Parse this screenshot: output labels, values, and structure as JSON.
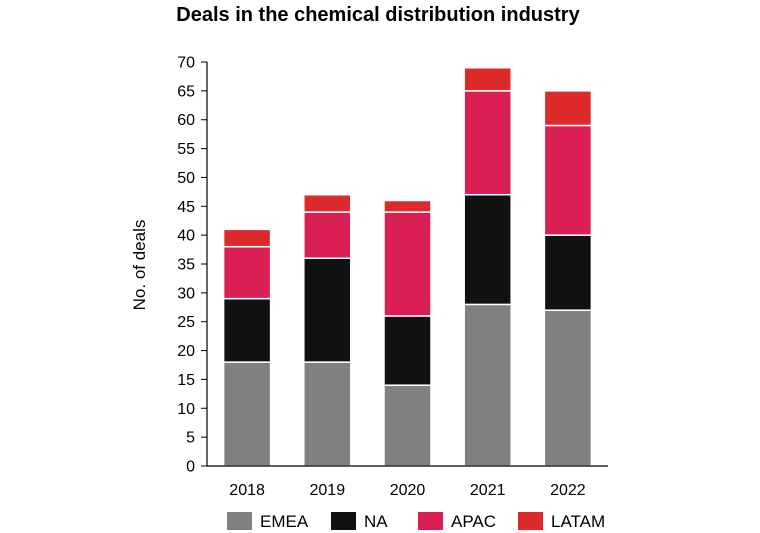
{
  "chart_data": {
    "type": "bar",
    "stacked": true,
    "title": "Deals in the chemical distribution industry",
    "xlabel": "",
    "ylabel": "No. of deals",
    "ylim": [
      0,
      70
    ],
    "yticks": [
      0,
      5,
      10,
      15,
      20,
      25,
      30,
      35,
      40,
      45,
      50,
      55,
      60,
      65,
      70
    ],
    "categories": [
      "2018",
      "2019",
      "2020",
      "2021",
      "2022"
    ],
    "series": [
      {
        "name": "EMEA",
        "color": "#808080",
        "values": [
          18,
          18,
          14,
          28,
          27
        ]
      },
      {
        "name": "NA",
        "color": "#111111",
        "values": [
          11,
          18,
          12,
          19,
          13
        ]
      },
      {
        "name": "APAC",
        "color": "#d91f54",
        "values": [
          9,
          8,
          18,
          18,
          19
        ]
      },
      {
        "name": "LATAM",
        "color": "#dc2a2a",
        "values": [
          3,
          3,
          2,
          4,
          6
        ]
      }
    ],
    "legend_position": "bottom"
  }
}
